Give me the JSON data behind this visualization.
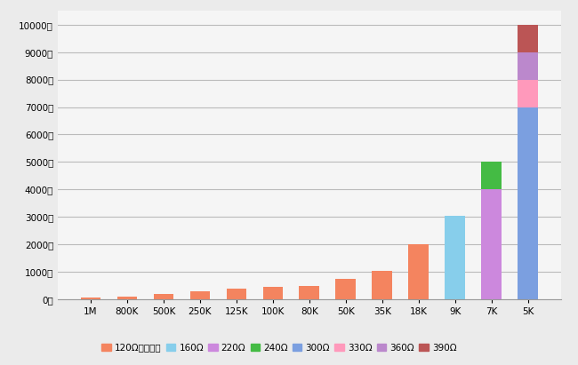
{
  "categories": [
    "1M",
    "800K",
    "500K",
    "250K",
    "125K",
    "100K",
    "80K",
    "50K",
    "35K",
    "18K",
    "9K",
    "7K",
    "5K"
  ],
  "series": [
    {
      "label": "120Ω匹配电阻",
      "color": "#F4845F",
      "values": [
        50,
        100,
        200,
        300,
        400,
        450,
        500,
        750,
        1050,
        2000,
        0,
        0,
        0
      ]
    },
    {
      "label": "160Ω",
      "color": "#87CEEB",
      "values": [
        0,
        0,
        0,
        0,
        0,
        0,
        0,
        0,
        0,
        0,
        3050,
        0,
        0
      ]
    },
    {
      "label": "220Ω",
      "color": "#CC88DD",
      "values": [
        0,
        0,
        0,
        0,
        0,
        0,
        0,
        0,
        0,
        0,
        0,
        4000,
        0
      ]
    },
    {
      "label": "240Ω",
      "color": "#44BB44",
      "values": [
        0,
        0,
        0,
        0,
        0,
        0,
        0,
        0,
        0,
        0,
        0,
        1000,
        0
      ]
    },
    {
      "label": "300Ω",
      "color": "#7B9FE0",
      "values": [
        0,
        0,
        0,
        0,
        0,
        0,
        0,
        0,
        0,
        0,
        0,
        0,
        7000
      ]
    },
    {
      "label": "330Ω",
      "color": "#FF99BB",
      "values": [
        0,
        0,
        0,
        0,
        0,
        0,
        0,
        0,
        0,
        0,
        0,
        0,
        1000
      ]
    },
    {
      "label": "360Ω",
      "color": "#BB88CC",
      "values": [
        0,
        0,
        0,
        0,
        0,
        0,
        0,
        0,
        0,
        0,
        0,
        0,
        1000
      ]
    },
    {
      "label": "390Ω",
      "color": "#BB5555",
      "values": [
        0,
        0,
        0,
        0,
        0,
        0,
        0,
        0,
        0,
        0,
        0,
        0,
        1000
      ]
    }
  ],
  "ylim": [
    0,
    10500
  ],
  "yticks": [
    0,
    1000,
    2000,
    3000,
    4000,
    5000,
    6000,
    7000,
    8000,
    9000,
    10000
  ],
  "ytick_labels": [
    "0米",
    "1000米",
    "2000米",
    "3000米",
    "4000米",
    "5000米",
    "6000米",
    "7000米",
    "8000米",
    "9000米",
    "10000米"
  ],
  "background_color": "#EBEBEB",
  "plot_background_color": "#F5F5F5",
  "grid_color": "#BBBBBB",
  "bar_width": 0.55,
  "legend_fontsize": 7.5,
  "tick_fontsize": 7.5
}
